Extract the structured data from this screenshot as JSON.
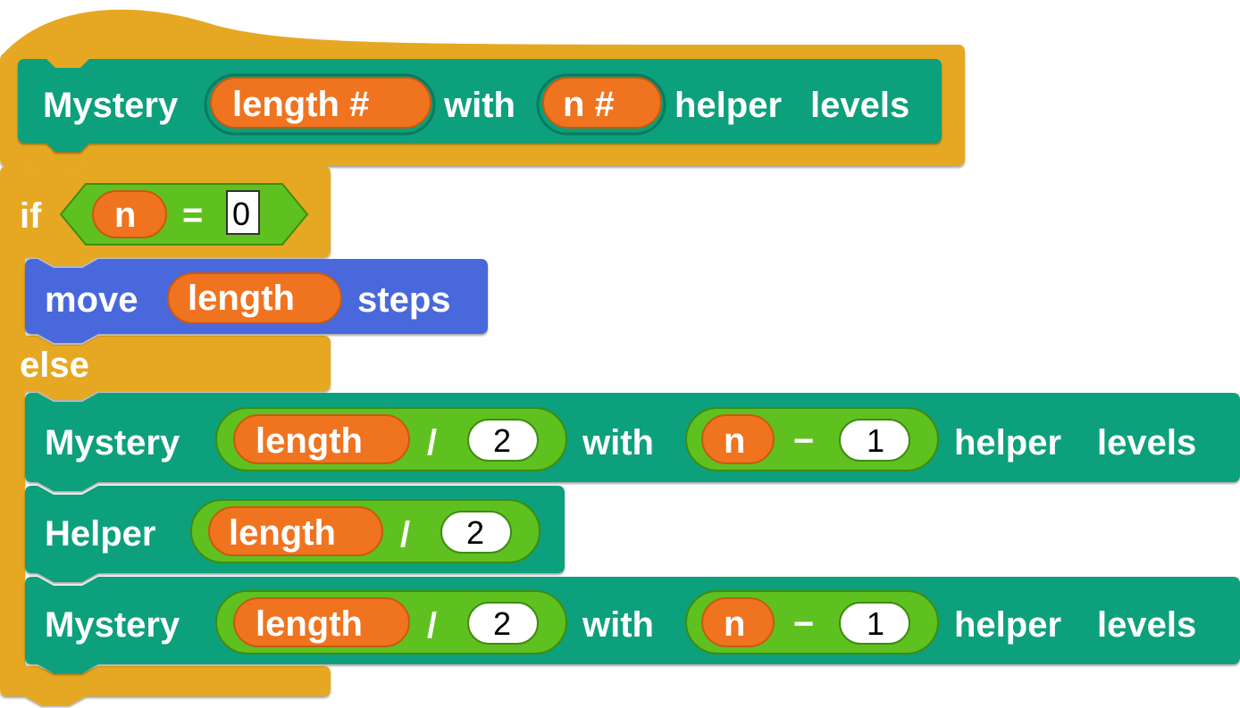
{
  "colors": {
    "control": "#E6A823",
    "custom": "#07A07B",
    "motion": "#4A68DC",
    "operator": "#5FC11F",
    "variable": "#F07320",
    "text": "#FFFFFF"
  },
  "hat_block": {
    "name": "Mystery",
    "param1": "length #",
    "word_with": "with",
    "param2": "n #",
    "word_helper": "helper",
    "word_levels": "levels"
  },
  "if_block": {
    "keyword_if": "if",
    "var_n": "n",
    "equals": "=",
    "value": "0",
    "keyword_else": "else"
  },
  "move_block": {
    "word_move": "move",
    "var_length": "length",
    "word_steps": "steps"
  },
  "mystery_call_1": {
    "name": "Mystery",
    "var_length": "length",
    "divide": "/",
    "divisor": "2",
    "word_with": "with",
    "var_n": "n",
    "minus": "−",
    "subtrahend": "1",
    "word_helper": "helper",
    "word_levels": "levels"
  },
  "helper_call": {
    "name": "Helper",
    "var_length": "length",
    "divide": "/",
    "divisor": "2"
  },
  "mystery_call_2": {
    "name": "Mystery",
    "var_length": "length",
    "divide": "/",
    "divisor": "2",
    "word_with": "with",
    "var_n": "n",
    "minus": "−",
    "subtrahend": "1",
    "word_helper": "helper",
    "word_levels": "levels"
  }
}
